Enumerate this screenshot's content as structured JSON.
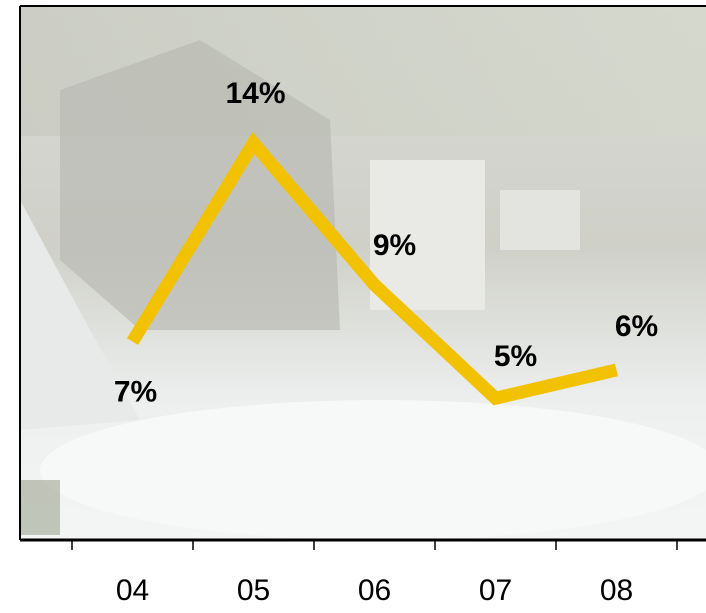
{
  "chart_data": {
    "type": "line",
    "categories": [
      "04",
      "05",
      "06",
      "07",
      "08"
    ],
    "values": [
      7,
      14,
      9,
      5,
      6
    ],
    "value_labels": [
      "7%",
      "14%",
      "9%",
      "5%",
      "6%"
    ],
    "color": "#f2c200",
    "ylim": [
      0,
      20
    ]
  }
}
